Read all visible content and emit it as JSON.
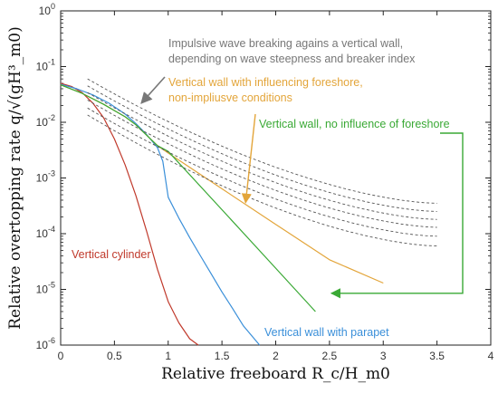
{
  "chart_data": {
    "type": "line",
    "xlabel": "Relative freeboard R_c/H_m0",
    "ylabel": "Relative overtopping rate q/√(gH³_m0)",
    "xlim": [
      0,
      4
    ],
    "ylim": [
      1e-06,
      1
    ],
    "yscale": "log",
    "grid": false,
    "x_ticks": [
      "0",
      "0.5",
      "1",
      "1.5",
      "2",
      "2.5",
      "3",
      "3.5",
      "4"
    ],
    "y_ticks": [
      {
        "base": "10",
        "exp": "0"
      },
      {
        "base": "10",
        "exp": "-1"
      },
      {
        "base": "10",
        "exp": "-2"
      },
      {
        "base": "10",
        "exp": "-3"
      },
      {
        "base": "10",
        "exp": "-4"
      },
      {
        "base": "10",
        "exp": "-5"
      },
      {
        "base": "10",
        "exp": "-6"
      }
    ],
    "series": [
      {
        "name": "Vertical cylinder",
        "color": "#c0392b",
        "points": [
          [
            0,
            0.05
          ],
          [
            0.1,
            0.044
          ],
          [
            0.2,
            0.034
          ],
          [
            0.3,
            0.022
          ],
          [
            0.4,
            0.012
          ],
          [
            0.5,
            0.005
          ],
          [
            0.6,
            0.0017
          ],
          [
            0.7,
            0.00048
          ],
          [
            0.8,
            0.00011
          ],
          [
            0.9,
            2.3e-05
          ],
          [
            1.0,
            6e-06
          ],
          [
            1.1,
            2.5e-06
          ],
          [
            1.2,
            1.3e-06
          ],
          [
            1.28,
            1e-06
          ]
        ]
      },
      {
        "name": "Vertical wall with parapet",
        "color": "#3a8fd9",
        "points": [
          [
            0,
            0.048
          ],
          [
            0.15,
            0.04
          ],
          [
            0.3,
            0.031
          ],
          [
            0.45,
            0.022
          ],
          [
            0.6,
            0.014
          ],
          [
            0.7,
            0.0095
          ],
          [
            0.8,
            0.006
          ],
          [
            0.9,
            0.0035
          ],
          [
            0.95,
            0.002
          ],
          [
            1.0,
            0.00045
          ],
          [
            1.1,
            0.00019
          ],
          [
            1.2,
            8.5e-05
          ],
          [
            1.3,
            4e-05
          ],
          [
            1.4,
            1.9e-05
          ],
          [
            1.5,
            9e-06
          ],
          [
            1.6,
            4.5e-06
          ],
          [
            1.7,
            2.2e-06
          ],
          [
            1.85,
            1e-06
          ]
        ]
      },
      {
        "name": "Vertical wall with influencing foreshore, non-impulsive conditions",
        "color": "#e3a53a",
        "points": [
          [
            0,
            0.047
          ],
          [
            0.2,
            0.033
          ],
          [
            0.4,
            0.021
          ],
          [
            0.6,
            0.0125
          ],
          [
            0.7,
            0.009
          ],
          [
            0.9,
            0.0038
          ],
          [
            1.0,
            0.0028
          ],
          [
            1.5,
            0.00064
          ],
          [
            2.0,
            0.000147
          ],
          [
            2.5,
            3.4e-05
          ],
          [
            3.0,
            1.3e-05
          ]
        ]
      },
      {
        "name": "Vertical wall, no influence of foreshore",
        "color": "#3aa935",
        "points": [
          [
            0,
            0.047
          ],
          [
            0.2,
            0.033
          ],
          [
            0.4,
            0.021
          ],
          [
            0.6,
            0.0125
          ],
          [
            0.7,
            0.009
          ],
          [
            0.9,
            0.0038
          ],
          [
            1.0,
            0.003
          ],
          [
            1.5,
            0.00027
          ],
          [
            2.0,
            2.4e-05
          ],
          [
            2.37,
            4e-06
          ]
        ]
      },
      {
        "name": "Impulsive wave breaking agains a vertical wall, depending on wave steepness and breaker index",
        "color": "#555555",
        "dashed": true,
        "family": [
          {
            "start": 0.06,
            "end": 0.00035
          },
          {
            "start": 0.045,
            "end": 0.00025
          },
          {
            "start": 0.034,
            "end": 0.00018
          },
          {
            "start": 0.025,
            "end": 0.00013
          },
          {
            "start": 0.018,
            "end": 9e-05
          },
          {
            "start": 0.0135,
            "end": 6e-05
          }
        ],
        "x_from": 0.25,
        "x_to": 3.5
      }
    ],
    "annotations": [
      {
        "name": "annot-impulsive",
        "color": "#777777",
        "lines": [
          "Impulsive wave breaking agains a vertical wall,",
          "depending on wave steepness and breaker index"
        ],
        "arrow_to": [
          0.75,
          0.022
        ]
      },
      {
        "name": "annot-foreshore",
        "color": "#e3a53a",
        "lines": [
          "Vertical wall with influencing foreshore,",
          "non-impliusve conditions"
        ],
        "arrow_to": [
          1.72,
          0.00036
        ]
      },
      {
        "name": "annot-no-foreshore",
        "color": "#3aa935",
        "lines": [
          "Vertical wall, no influence of foreshore"
        ],
        "arrow_to": [
          2.5,
          8.5e-06
        ]
      },
      {
        "name": "annot-cylinder",
        "color": "#c0392b",
        "lines": [
          "Vertical cylinder"
        ],
        "arrow_to": null
      },
      {
        "name": "annot-parapet",
        "color": "#3a8fd9",
        "lines": [
          "Vertical wall with parapet"
        ],
        "arrow_to": null
      }
    ]
  }
}
